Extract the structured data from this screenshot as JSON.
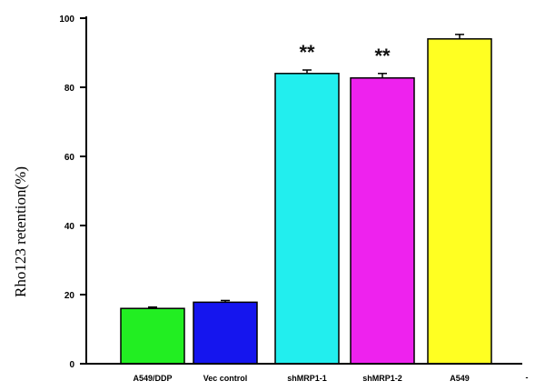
{
  "chart_data": {
    "type": "bar",
    "title": "",
    "xlabel": "",
    "ylabel": "Rho123 retention(%)",
    "ylim": [
      0,
      100
    ],
    "yticks": [
      0,
      20,
      40,
      60,
      80,
      100
    ],
    "ytick_labels": [
      "0",
      "20",
      "40",
      "60",
      "80",
      "100"
    ],
    "categories": [
      "A549/DDP",
      "Vec control",
      "shMRP1-1",
      "shMRP1-2",
      "A549"
    ],
    "extra_xtick_label": "-",
    "values": [
      16,
      17.8,
      84,
      82.7,
      94
    ],
    "errors": [
      0.4,
      0.5,
      1.0,
      1.3,
      1.3
    ],
    "bar_colors": [
      "#22ee22",
      "#1515ee",
      "#22eeee",
      "#ee22ee",
      "#ffff22"
    ],
    "annotations": [
      "",
      "",
      "**",
      "**",
      ""
    ],
    "grid": false,
    "legend": "none"
  }
}
